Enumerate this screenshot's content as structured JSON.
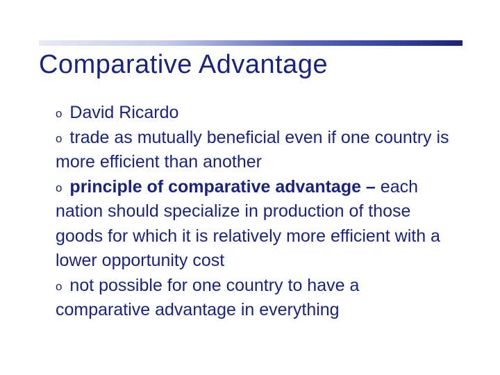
{
  "slide": {
    "title": "Comparative Advantage",
    "title_color": "#1a237e",
    "title_fontsize": 38,
    "bar_gradient_start": "#e8eaf6",
    "bar_gradient_end": "#1a237e",
    "body_color": "#1a237e",
    "body_fontsize": 25,
    "bullets": {
      "b1": "David Ricardo",
      "b2": "trade as mutually beneficial even if one country is more efficient than another",
      "b3_bold": "principle of comparative advantage –",
      "b3_rest": " each nation should specialize in production of those goods for which it is relatively more efficient with a lower opportunity cost",
      "b4": "not possible for one country to have a comparative advantage in everything"
    },
    "bullet_marker": "o"
  }
}
